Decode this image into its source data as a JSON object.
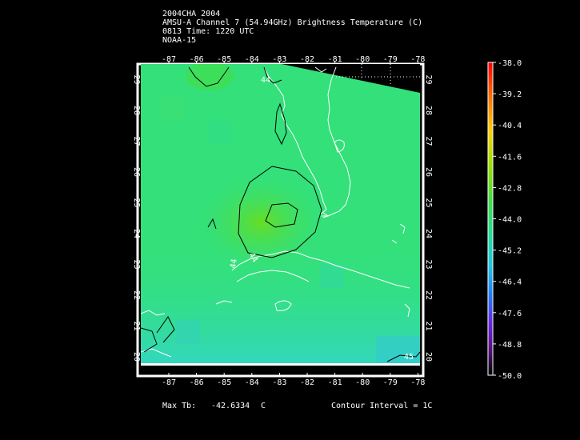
{
  "header": {
    "line1": "2004CHA 2004",
    "line2": "AMSU-A Channel 7 (54.94GHz) Brightness Temperature (C)",
    "line3": "0813 Time: 1220 UTC",
    "line4": "NOAA-15"
  },
  "map": {
    "lon_labels": [
      "-87",
      "-86",
      "-85",
      "-84",
      "-83",
      "-82",
      "-81",
      "-80",
      "-79",
      "-78"
    ],
    "lat_labels": [
      "20",
      "21",
      "22",
      "23",
      "24",
      "25",
      "26",
      "27",
      "28",
      "29"
    ],
    "contour_labels": [
      "44",
      "44",
      "44",
      "45"
    ],
    "colors": {
      "field_main": "#33e07a",
      "field_warm": "#55dd33",
      "field_cool": "#33d6c0",
      "coast": "#ffffff",
      "contour": "#000000"
    }
  },
  "colorbar": {
    "ticks": [
      "-38.0",
      "-39.2",
      "-40.4",
      "-41.6",
      "-42.8",
      "-44.0",
      "-45.2",
      "-46.4",
      "-47.6",
      "-48.8",
      "-50.0"
    ],
    "top_color": "#ff0000",
    "bottom_color": "#000000"
  },
  "footer": {
    "max_label": "Max Tb:",
    "max_value": "-42.6334",
    "max_unit": "C",
    "contour_interval": "Contour Interval = 1C"
  }
}
